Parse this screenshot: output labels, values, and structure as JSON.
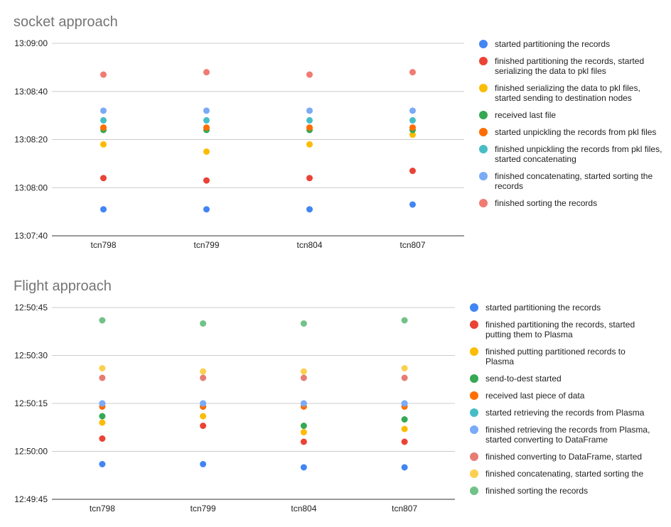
{
  "chart_data": [
    {
      "type": "scatter",
      "title": "socket approach",
      "xlabel": "",
      "ylabel": "",
      "categories": [
        "tcn798",
        "tcn799",
        "tcn804",
        "tcn807"
      ],
      "y_format": "time",
      "ylim": [
        "13:07:40",
        "13:09:00"
      ],
      "yticks": [
        "13:07:40",
        "13:08:00",
        "13:08:20",
        "13:08:40",
        "13:09:00"
      ],
      "grid": true,
      "legend_position": "right",
      "series": [
        {
          "name": "started partitioning the records",
          "color": "#4285f4",
          "values": [
            "13:07:51",
            "13:07:51",
            "13:07:51",
            "13:07:53"
          ]
        },
        {
          "name": "finished partitioning the records, started serializing the data to pkl files",
          "color": "#ea4335",
          "values": [
            "13:08:04",
            "13:08:03",
            "13:08:04",
            "13:08:07"
          ]
        },
        {
          "name": "finished serializing the data to pkl files, started sending to destination nodes",
          "color": "#fbbc04",
          "values": [
            "13:08:18",
            "13:08:15",
            "13:08:18",
            "13:08:22"
          ]
        },
        {
          "name": "received last file",
          "color": "#34a853",
          "values": [
            "13:08:24",
            "13:08:24",
            "13:08:24",
            "13:08:24"
          ]
        },
        {
          "name": "started unpickling the records from pkl files",
          "color": "#ff6d01",
          "values": [
            "13:08:25",
            "13:08:25",
            "13:08:25",
            "13:08:25"
          ]
        },
        {
          "name": "finished unpickling the records from pkl files, started concatenating",
          "color": "#46bdc6",
          "values": [
            "13:08:28",
            "13:08:28",
            "13:08:28",
            "13:08:28"
          ]
        },
        {
          "name": "finished concatenating, started sorting the records",
          "color": "#7baaf7",
          "values": [
            "13:08:32",
            "13:08:32",
            "13:08:32",
            "13:08:32"
          ]
        },
        {
          "name": "finished sorting the records",
          "color": "#f07b72",
          "values": [
            "13:08:47",
            "13:08:48",
            "13:08:47",
            "13:08:48"
          ]
        }
      ]
    },
    {
      "type": "scatter",
      "title": "Flight approach",
      "xlabel": "",
      "ylabel": "",
      "categories": [
        "tcn798",
        "tcn799",
        "tcn804",
        "tcn807"
      ],
      "y_format": "time",
      "ylim": [
        "12:49:45",
        "12:50:45"
      ],
      "yticks": [
        "12:49:45",
        "12:50:00",
        "12:50:15",
        "12:50:30",
        "12:50:45"
      ],
      "grid": true,
      "legend_position": "right",
      "series": [
        {
          "name": "started partitioning the records",
          "color": "#4285f4",
          "values": [
            "12:49:56",
            "12:49:56",
            "12:49:55",
            "12:49:55"
          ]
        },
        {
          "name": "finished partitioning the records, started putting them to Plasma",
          "color": "#ea4335",
          "values": [
            "12:50:04",
            "12:50:08",
            "12:50:03",
            "12:50:03"
          ]
        },
        {
          "name": "finished putting partitioned records to Plasma",
          "color": "#fbbc04",
          "values": [
            "12:50:09",
            "12:50:11",
            "12:50:06",
            "12:50:07"
          ]
        },
        {
          "name": "send-to-dest started",
          "color": "#34a853",
          "values": [
            "12:50:11",
            "12:50:14",
            "12:50:08",
            "12:50:10"
          ]
        },
        {
          "name": "received last piece of data",
          "color": "#ff6d01",
          "values": [
            "12:50:14",
            "12:50:14",
            "12:50:14",
            "12:50:14"
          ]
        },
        {
          "name": "started retrieving the records from Plasma",
          "color": "#46bdc6",
          "values": [
            "12:50:15",
            "12:50:15",
            "12:50:15",
            "12:50:15"
          ]
        },
        {
          "name": "finished retrieving the records from Plasma, started converting to DataFrame",
          "color": "#7baaf7",
          "values": [
            "12:50:15",
            "12:50:15",
            "12:50:15",
            "12:50:15"
          ]
        },
        {
          "name": "finished converting to DataFrame, started",
          "color": "#e67c73",
          "values": [
            "12:50:23",
            "12:50:23",
            "12:50:23",
            "12:50:23"
          ]
        },
        {
          "name": "finished concatenating, started sorting the",
          "color": "#fcd04f",
          "values": [
            "12:50:26",
            "12:50:25",
            "12:50:25",
            "12:50:26"
          ]
        },
        {
          "name": "finished sorting the records",
          "color": "#71c287",
          "values": [
            "12:50:41",
            "12:50:40",
            "12:50:40",
            "12:50:41"
          ]
        }
      ]
    }
  ]
}
